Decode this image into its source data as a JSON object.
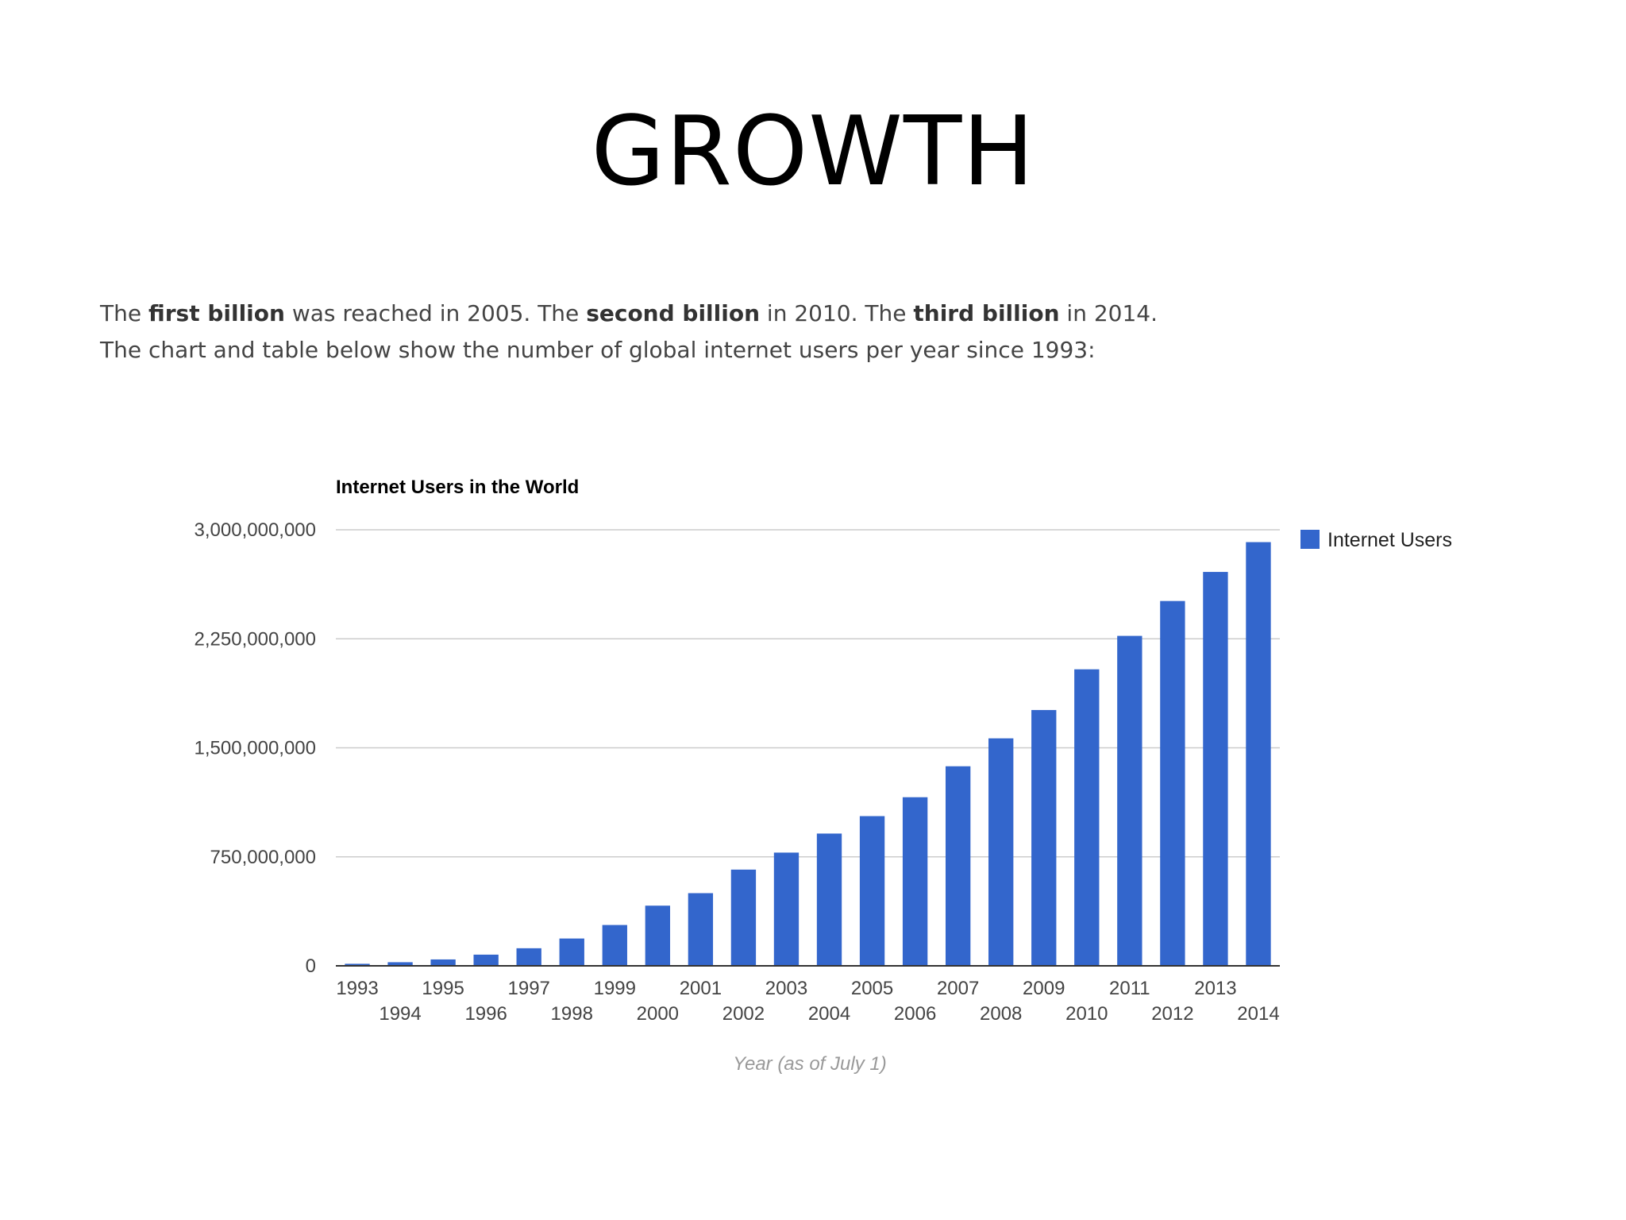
{
  "slide": {
    "title": "GROWTH",
    "intro": {
      "line1": [
        {
          "text": "The ",
          "bold": false
        },
        {
          "text": "first billion",
          "bold": true
        },
        {
          "text": " was reached in 2005. The ",
          "bold": false
        },
        {
          "text": "second billion",
          "bold": true
        },
        {
          "text": " in 2010. The ",
          "bold": false
        },
        {
          "text": "third billion",
          "bold": true
        },
        {
          "text": " in 2014.",
          "bold": false
        }
      ],
      "line2": "The chart and table below show the number of global internet users per year since 1993:"
    }
  },
  "chart_data": {
    "type": "bar",
    "title": "Internet Users in the World",
    "xlabel": "Year (as of July 1)",
    "ylabel": "",
    "ylim": [
      0,
      3000000000
    ],
    "yticks": [
      "0",
      "750,000,000",
      "1,500,000,000",
      "2,250,000,000",
      "3,000,000,000"
    ],
    "ytick_values": [
      0,
      750000000,
      1500000000,
      2250000000,
      3000000000
    ],
    "grid": true,
    "legend": "right",
    "bar_color": "#3366cc",
    "categories": [
      "1993",
      "1994",
      "1995",
      "1996",
      "1997",
      "1998",
      "1999",
      "2000",
      "2001",
      "2002",
      "2003",
      "2004",
      "2005",
      "2006",
      "2007",
      "2008",
      "2009",
      "2010",
      "2011",
      "2012",
      "2013",
      "2014"
    ],
    "series": [
      {
        "name": "Internet Users",
        "values": [
          14000000,
          25000000,
          44000000,
          77000000,
          121000000,
          188000000,
          281000000,
          414000000,
          500000000,
          662000000,
          779000000,
          910000000,
          1030000000,
          1160000000,
          1373000000,
          1565000000,
          1760000000,
          2040000000,
          2270000000,
          2510000000,
          2710000000,
          2915000000
        ]
      }
    ]
  }
}
